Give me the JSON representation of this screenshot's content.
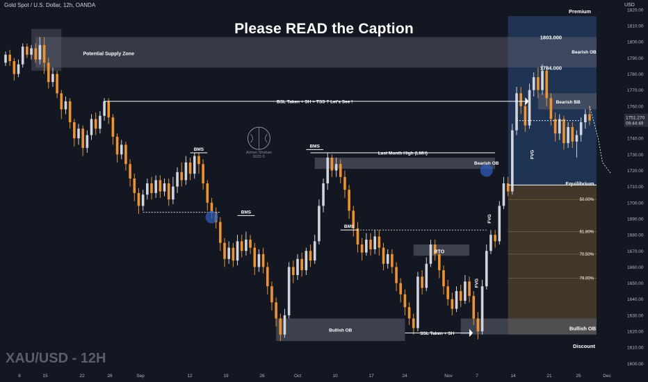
{
  "header": {
    "symbol": "Gold Spot / U.S. Dollar, 12h, OANDA"
  },
  "title": "Please READ the Caption",
  "watermark": "XAU/USD - 12H",
  "logo": {
    "name_line1": "Armen Shaban",
    "name_line2": "2022 ©"
  },
  "colors": {
    "background": "#131722",
    "bull": "#d1d4dc",
    "bear": "#f0932b",
    "premium": "#2a4a7a",
    "discount": "#6b5230",
    "zone": "#5a5e6b"
  },
  "chart_data": {
    "type": "candlestick",
    "y_axis_unit": "USD",
    "ylim": [
      1598,
      1826
    ],
    "y_ticks": [
      1600,
      1610,
      1620,
      1630,
      1640,
      1650,
      1660,
      1670,
      1680,
      1690,
      1700,
      1710,
      1720,
      1730,
      1740,
      1750,
      1760,
      1770,
      1780,
      1790,
      1800,
      1810,
      1820
    ],
    "x_ticks": [
      "8",
      "15",
      "22",
      "26",
      "Sep",
      "12",
      "19",
      "26",
      "Oct",
      "10",
      "17",
      "24",
      "Nov",
      "7",
      "14",
      "21",
      "25",
      "Dec"
    ],
    "current_price": "1751.270",
    "countdown": "09:44:49",
    "annotations": {
      "premium": "Premium",
      "equilibrium": "Equilibrium",
      "discount": "Discount",
      "supply_zone": "Potential Supply Zone",
      "bsl_text": "BSL Taken + SH + TSS ? Let's See !",
      "lmh_text": "Last Month High (LMH)",
      "bms_1": "BMS",
      "bms_2": "BMS",
      "bms_3": "BMS",
      "bms_4": "BMS",
      "rto": "RTO",
      "bullish_ob_1": "Bullish OB",
      "bullish_ob_2": "Bullish OB",
      "bearish_ob_1": "Bearish OB",
      "bearish_ob_2": "Bearish OB",
      "bearish_bb": "Bearish BB",
      "ssl_text": "SSL Taken + SH",
      "fvg_1": "FVG",
      "fvg_2": "FVG",
      "fvg_3": "FVG",
      "level_1803": "1803.000",
      "level_1784": "1784.000",
      "fib_50": "50.00%",
      "fib_618": "61.80%",
      "fib_705": "70.50%",
      "fib_79": "79.00%"
    },
    "candles": [
      [
        1787,
        1792,
        1785,
        1794
      ],
      [
        1792,
        1788,
        1785,
        1795
      ],
      [
        1788,
        1780,
        1776,
        1790
      ],
      [
        1780,
        1786,
        1778,
        1789
      ],
      [
        1786,
        1797,
        1784,
        1799
      ],
      [
        1797,
        1792,
        1790,
        1799
      ],
      [
        1792,
        1796,
        1789,
        1798
      ],
      [
        1796,
        1789,
        1787,
        1799
      ],
      [
        1789,
        1798,
        1786,
        1803
      ],
      [
        1798,
        1787,
        1780,
        1803
      ],
      [
        1787,
        1775,
        1771,
        1790
      ],
      [
        1775,
        1780,
        1772,
        1784
      ],
      [
        1780,
        1768,
        1765,
        1782
      ],
      [
        1768,
        1758,
        1752,
        1770
      ],
      [
        1758,
        1763,
        1755,
        1766
      ],
      [
        1763,
        1750,
        1746,
        1765
      ],
      [
        1750,
        1740,
        1735,
        1752
      ],
      [
        1740,
        1746,
        1736,
        1749
      ],
      [
        1746,
        1734,
        1729,
        1748
      ],
      [
        1734,
        1742,
        1731,
        1745
      ],
      [
        1742,
        1752,
        1739,
        1755
      ],
      [
        1752,
        1746,
        1742,
        1756
      ],
      [
        1746,
        1754,
        1743,
        1757
      ],
      [
        1754,
        1763,
        1751,
        1765
      ],
      [
        1763,
        1753,
        1749,
        1765
      ],
      [
        1753,
        1741,
        1736,
        1755
      ],
      [
        1741,
        1730,
        1725,
        1743
      ],
      [
        1730,
        1736,
        1727,
        1739
      ],
      [
        1736,
        1724,
        1720,
        1738
      ],
      [
        1724,
        1715,
        1710,
        1727
      ],
      [
        1715,
        1706,
        1701,
        1718
      ],
      [
        1706,
        1698,
        1693,
        1709
      ],
      [
        1698,
        1705,
        1695,
        1708
      ],
      [
        1705,
        1712,
        1702,
        1715
      ],
      [
        1712,
        1706,
        1702,
        1716
      ],
      [
        1706,
        1714,
        1703,
        1717
      ],
      [
        1714,
        1707,
        1703,
        1717
      ],
      [
        1707,
        1712,
        1704,
        1715
      ],
      [
        1712,
        1702,
        1698,
        1715
      ],
      [
        1702,
        1710,
        1699,
        1716
      ],
      [
        1710,
        1719,
        1706,
        1722
      ],
      [
        1719,
        1714,
        1710,
        1725
      ],
      [
        1714,
        1725,
        1711,
        1729
      ],
      [
        1725,
        1718,
        1714,
        1728
      ],
      [
        1718,
        1729,
        1715,
        1731
      ],
      [
        1729,
        1724,
        1718,
        1731
      ],
      [
        1724,
        1712,
        1708,
        1727
      ],
      [
        1712,
        1700,
        1695,
        1714
      ],
      [
        1700,
        1694,
        1690,
        1703
      ],
      [
        1694,
        1688,
        1684,
        1697
      ],
      [
        1688,
        1675,
        1670,
        1691
      ],
      [
        1675,
        1665,
        1660,
        1678
      ],
      [
        1665,
        1672,
        1662,
        1676
      ],
      [
        1672,
        1664,
        1660,
        1675
      ],
      [
        1664,
        1676,
        1661,
        1680
      ],
      [
        1676,
        1670,
        1666,
        1680
      ],
      [
        1670,
        1677,
        1667,
        1682
      ],
      [
        1677,
        1672,
        1668,
        1680
      ],
      [
        1672,
        1660,
        1655,
        1675
      ],
      [
        1660,
        1668,
        1657,
        1671
      ],
      [
        1668,
        1660,
        1656,
        1672
      ],
      [
        1660,
        1648,
        1643,
        1663
      ],
      [
        1648,
        1638,
        1633,
        1651
      ],
      [
        1638,
        1628,
        1623,
        1641
      ],
      [
        1628,
        1618,
        1614,
        1631
      ],
      [
        1618,
        1630,
        1616,
        1634
      ],
      [
        1630,
        1660,
        1628,
        1663
      ],
      [
        1660,
        1655,
        1650,
        1664
      ],
      [
        1655,
        1665,
        1652,
        1668
      ],
      [
        1665,
        1658,
        1654,
        1669
      ],
      [
        1658,
        1670,
        1655,
        1672
      ],
      [
        1670,
        1664,
        1660,
        1674
      ],
      [
        1664,
        1676,
        1662,
        1680
      ],
      [
        1676,
        1698,
        1674,
        1702
      ],
      [
        1698,
        1712,
        1694,
        1715
      ],
      [
        1712,
        1728,
        1708,
        1731
      ],
      [
        1728,
        1720,
        1716,
        1730
      ],
      [
        1720,
        1724,
        1716,
        1728
      ],
      [
        1724,
        1716,
        1712,
        1727
      ],
      [
        1716,
        1708,
        1703,
        1720
      ],
      [
        1708,
        1695,
        1690,
        1711
      ],
      [
        1695,
        1684,
        1679,
        1698
      ],
      [
        1684,
        1674,
        1669,
        1688
      ],
      [
        1674,
        1669,
        1664,
        1678
      ],
      [
        1669,
        1677,
        1667,
        1681
      ],
      [
        1677,
        1671,
        1667,
        1681
      ],
      [
        1671,
        1679,
        1668,
        1683
      ],
      [
        1679,
        1672,
        1667,
        1683
      ],
      [
        1672,
        1662,
        1658,
        1675
      ],
      [
        1662,
        1668,
        1659,
        1671
      ],
      [
        1668,
        1660,
        1656,
        1671
      ],
      [
        1660,
        1650,
        1645,
        1663
      ],
      [
        1650,
        1643,
        1638,
        1653
      ],
      [
        1643,
        1635,
        1630,
        1646
      ],
      [
        1635,
        1628,
        1624,
        1638
      ],
      [
        1628,
        1622,
        1618,
        1631
      ],
      [
        1622,
        1654,
        1620,
        1657
      ],
      [
        1654,
        1647,
        1643,
        1658
      ],
      [
        1647,
        1662,
        1645,
        1666
      ],
      [
        1662,
        1674,
        1660,
        1677
      ],
      [
        1674,
        1668,
        1664,
        1677
      ],
      [
        1668,
        1658,
        1653,
        1671
      ],
      [
        1658,
        1648,
        1643,
        1661
      ],
      [
        1648,
        1640,
        1636,
        1652
      ],
      [
        1640,
        1634,
        1630,
        1644
      ],
      [
        1634,
        1645,
        1632,
        1648
      ],
      [
        1645,
        1639,
        1635,
        1649
      ],
      [
        1639,
        1651,
        1637,
        1655
      ],
      [
        1651,
        1642,
        1638,
        1654
      ],
      [
        1642,
        1628,
        1624,
        1645
      ],
      [
        1628,
        1620,
        1615,
        1632
      ],
      [
        1620,
        1648,
        1618,
        1652
      ],
      [
        1648,
        1670,
        1646,
        1674
      ],
      [
        1670,
        1680,
        1668,
        1683
      ],
      [
        1680,
        1676,
        1672,
        1683
      ],
      [
        1676,
        1698,
        1674,
        1701
      ],
      [
        1698,
        1712,
        1696,
        1716
      ],
      [
        1712,
        1707,
        1704,
        1716
      ],
      [
        1707,
        1745,
        1705,
        1749
      ],
      [
        1745,
        1768,
        1742,
        1772
      ],
      [
        1768,
        1760,
        1755,
        1772
      ],
      [
        1760,
        1748,
        1744,
        1763
      ],
      [
        1748,
        1770,
        1746,
        1774
      ],
      [
        1770,
        1778,
        1766,
        1781
      ],
      [
        1778,
        1770,
        1765,
        1784
      ],
      [
        1770,
        1782,
        1767,
        1786
      ],
      [
        1782,
        1765,
        1760,
        1785
      ],
      [
        1765,
        1752,
        1748,
        1768
      ],
      [
        1752,
        1743,
        1738,
        1756
      ],
      [
        1743,
        1752,
        1739,
        1755
      ],
      [
        1752,
        1737,
        1733,
        1754
      ],
      [
        1737,
        1747,
        1734,
        1750
      ],
      [
        1747,
        1738,
        1734,
        1750
      ],
      [
        1738,
        1742,
        1728,
        1745
      ],
      [
        1742,
        1750,
        1738,
        1753
      ],
      [
        1750,
        1755,
        1746,
        1758
      ],
      [
        1755,
        1751,
        1748,
        1760
      ]
    ]
  }
}
